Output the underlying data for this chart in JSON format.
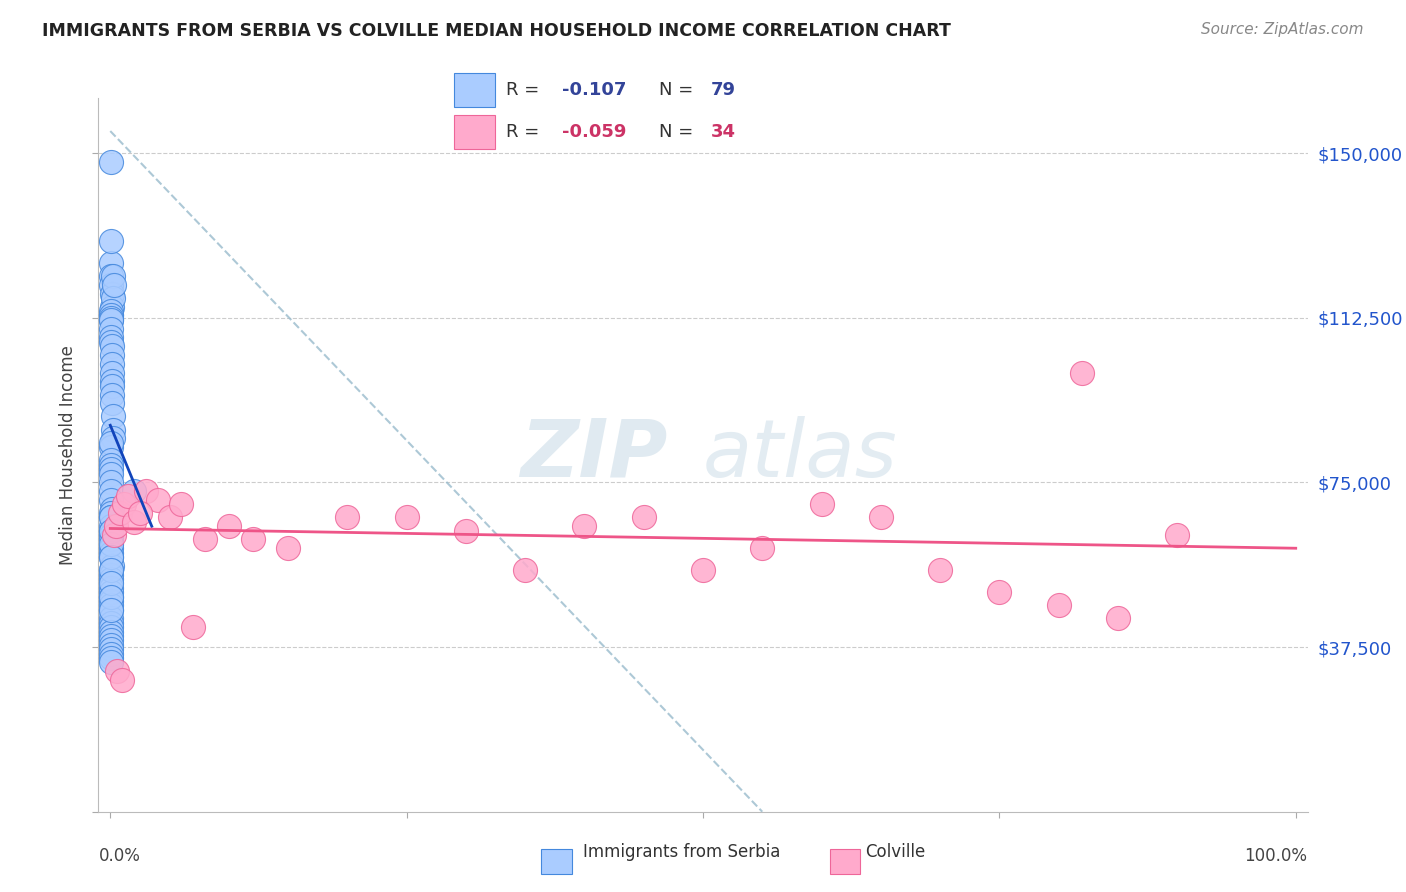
{
  "title": "IMMIGRANTS FROM SERBIA VS COLVILLE MEDIAN HOUSEHOLD INCOME CORRELATION CHART",
  "source": "Source: ZipAtlas.com",
  "ylabel": "Median Household Income",
  "serbia_color": "#aaccff",
  "serbia_edge": "#4488dd",
  "colville_color": "#ffaacc",
  "colville_edge": "#ee6699",
  "serbia_line_color": "#1144bb",
  "colville_line_color": "#ee5588",
  "dashed_line_color": "#99bbcc",
  "watermark_color": "#ccdde8",
  "serbia_r": "-0.107",
  "serbia_n": "79",
  "colville_r": "-0.059",
  "colville_n": "34",
  "r_label_color_blue": "#334499",
  "r_label_color_pink": "#cc3366",
  "serbia_x": [
    0.05,
    0.07,
    0.08,
    0.1,
    0.1,
    0.12,
    0.15,
    0.2,
    0.25,
    0.3,
    0.05,
    0.05,
    0.06,
    0.07,
    0.08,
    0.08,
    0.09,
    0.1,
    0.1,
    0.11,
    0.12,
    0.13,
    0.14,
    0.15,
    0.15,
    0.16,
    0.18,
    0.2,
    0.22,
    0.25,
    0.05,
    0.05,
    0.06,
    0.07,
    0.07,
    0.08,
    0.09,
    0.1,
    0.1,
    0.12,
    0.05,
    0.05,
    0.06,
    0.06,
    0.07,
    0.08,
    0.09,
    0.1,
    0.1,
    0.12,
    0.05,
    0.05,
    0.05,
    0.06,
    0.07,
    0.08,
    0.08,
    0.09,
    0.1,
    0.1,
    0.05,
    0.05,
    0.05,
    0.06,
    0.06,
    0.07,
    0.07,
    0.08,
    0.08,
    0.09,
    0.05,
    0.05,
    0.05,
    0.05,
    0.05,
    0.05,
    0.05,
    2.0,
    0.05
  ],
  "serbia_y": [
    148000,
    125000,
    122000,
    130000,
    120000,
    118000,
    115000,
    122000,
    117000,
    120000,
    113000,
    114000,
    113000,
    112000,
    112500,
    112000,
    110000,
    108000,
    107000,
    106000,
    104000,
    102000,
    100000,
    98000,
    97000,
    95000,
    93000,
    90000,
    87000,
    85000,
    83000,
    84000,
    80000,
    79000,
    78000,
    77000,
    75000,
    73000,
    71000,
    69000,
    68000,
    67000,
    65000,
    64000,
    63000,
    62000,
    60000,
    59000,
    58000,
    56000,
    55000,
    54000,
    53000,
    51000,
    50000,
    49000,
    48000,
    47000,
    46000,
    44000,
    43000,
    42000,
    41000,
    40000,
    39000,
    38000,
    37000,
    36000,
    35000,
    34000,
    67000,
    64000,
    61000,
    58000,
    55000,
    52000,
    49000,
    73000,
    46000
  ],
  "colville_x": [
    0.3,
    0.5,
    0.8,
    1.2,
    1.5,
    2.0,
    3.0,
    4.0,
    5.0,
    6.0,
    8.0,
    10.0,
    12.0,
    15.0,
    20.0,
    25.0,
    30.0,
    35.0,
    40.0,
    45.0,
    50.0,
    55.0,
    60.0,
    65.0,
    70.0,
    75.0,
    80.0,
    82.0,
    85.0,
    90.0,
    0.6,
    1.0,
    2.5,
    7.0
  ],
  "colville_y": [
    63000,
    65000,
    68000,
    70000,
    72000,
    66000,
    73000,
    71000,
    67000,
    70000,
    62000,
    65000,
    62000,
    60000,
    67000,
    67000,
    64000,
    55000,
    65000,
    67000,
    55000,
    60000,
    70000,
    67000,
    55000,
    50000,
    47000,
    100000,
    44000,
    63000,
    32000,
    30000,
    68000,
    42000
  ]
}
